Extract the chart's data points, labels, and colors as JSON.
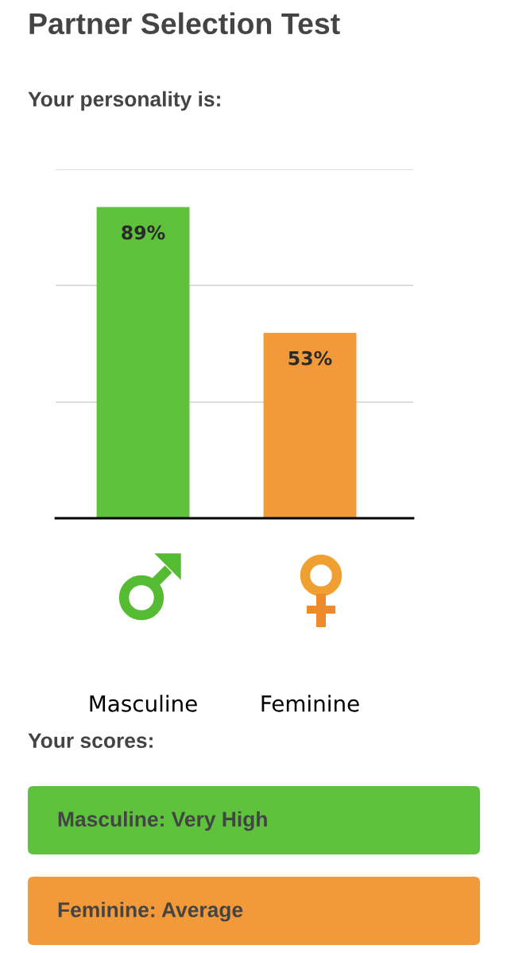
{
  "chart_data": {
    "type": "bar",
    "title": "Partner Selection Test",
    "subtitle": "Your personality is:",
    "categories": [
      "Masculine",
      "Feminine"
    ],
    "values": [
      89,
      53
    ],
    "colors": [
      "#5ec23c",
      "#f29a3a"
    ],
    "value_labels": [
      "89%",
      "53%"
    ],
    "ylim": [
      0,
      100
    ],
    "yticks": [
      {
        "value": 33.3,
        "label": null
      },
      {
        "value": 66.7,
        "label": null
      },
      {
        "value": 100,
        "label": null
      }
    ],
    "grid": "y",
    "tick_labels": "x",
    "legend": false,
    "annotations": [
      "Your scores:",
      "Masculine: Very High",
      "Feminine: Average"
    ]
  }
}
